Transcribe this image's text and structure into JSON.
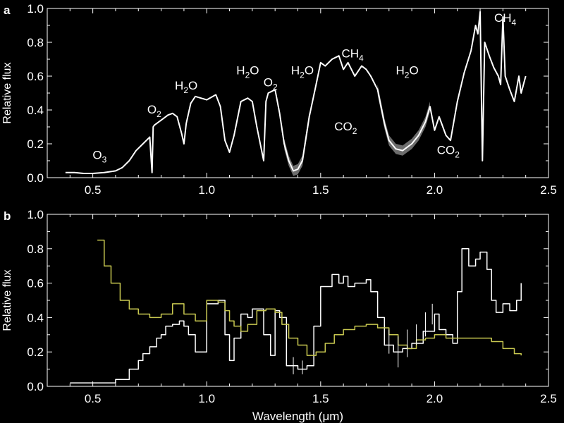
{
  "colors": {
    "background": "#000000",
    "axes": "#ffffff",
    "spectrum": "#ffffff",
    "uncertainty_band": "#888888",
    "model": "#c8c850"
  },
  "chart_data": [
    {
      "panel_label": "a",
      "type": "line",
      "xlabel": "",
      "ylabel": "Relative flux",
      "xlim": [
        0.3,
        2.5
      ],
      "ylim": [
        0.0,
        1.0
      ],
      "xticks": [
        "0.5",
        "1.0",
        "1.5",
        "2.0",
        "2.5"
      ],
      "yticks": [
        "0.0",
        "0.2",
        "0.4",
        "0.6",
        "0.8",
        "1.0"
      ],
      "annotations": [
        {
          "base": "O",
          "sub": "3",
          "x": 0.53,
          "y": 0.11
        },
        {
          "base": "O",
          "sub": "2",
          "x": 0.77,
          "y": 0.38
        },
        {
          "base": "H",
          "sub": "2",
          "tail": "O",
          "x": 0.91,
          "y": 0.52
        },
        {
          "base": "H",
          "sub": "2",
          "tail": "O",
          "x": 1.18,
          "y": 0.61
        },
        {
          "base": "O",
          "sub": "2",
          "x": 1.28,
          "y": 0.54
        },
        {
          "base": "H",
          "sub": "2",
          "tail": "O",
          "x": 1.42,
          "y": 0.61
        },
        {
          "base": "CH",
          "sub": "4",
          "x": 1.64,
          "y": 0.71
        },
        {
          "base": "CO",
          "sub": "2",
          "x": 1.61,
          "y": 0.28
        },
        {
          "base": "H",
          "sub": "2",
          "tail": "O",
          "x": 1.88,
          "y": 0.61
        },
        {
          "base": "CO",
          "sub": "2",
          "x": 2.06,
          "y": 0.14
        },
        {
          "base": "CH",
          "sub": "4",
          "x": 2.31,
          "y": 0.92
        }
      ],
      "series": [
        {
          "style": "spectrum",
          "x": [
            0.38,
            0.42,
            0.46,
            0.5,
            0.55,
            0.6,
            0.63,
            0.66,
            0.69,
            0.72,
            0.75,
            0.76,
            0.765,
            0.77,
            0.8,
            0.83,
            0.85,
            0.87,
            0.89,
            0.9,
            0.91,
            0.93,
            0.95,
            1.0,
            1.04,
            1.06,
            1.08,
            1.1,
            1.12,
            1.15,
            1.18,
            1.2,
            1.22,
            1.25,
            1.26,
            1.27,
            1.3,
            1.32,
            1.34,
            1.36,
            1.38,
            1.4,
            1.42,
            1.45,
            1.48,
            1.5,
            1.52,
            1.55,
            1.58,
            1.6,
            1.62,
            1.65,
            1.68,
            1.7,
            1.72,
            1.75,
            1.78,
            1.8,
            1.83,
            1.86,
            1.9,
            1.93,
            1.96,
            1.98,
            2.0,
            2.02,
            2.05,
            2.07,
            2.1,
            2.13,
            2.16,
            2.18,
            2.19,
            2.2,
            2.21,
            2.22,
            2.24,
            2.26,
            2.28,
            2.29,
            2.3,
            2.31,
            2.33,
            2.35,
            2.37,
            2.38,
            2.4
          ],
          "y": [
            0.03,
            0.03,
            0.025,
            0.025,
            0.03,
            0.04,
            0.06,
            0.1,
            0.16,
            0.2,
            0.24,
            0.03,
            0.3,
            0.31,
            0.34,
            0.37,
            0.38,
            0.36,
            0.26,
            0.2,
            0.32,
            0.44,
            0.48,
            0.46,
            0.49,
            0.42,
            0.22,
            0.15,
            0.25,
            0.45,
            0.47,
            0.45,
            0.3,
            0.1,
            0.45,
            0.5,
            0.52,
            0.38,
            0.2,
            0.1,
            0.04,
            0.05,
            0.1,
            0.36,
            0.55,
            0.68,
            0.66,
            0.7,
            0.72,
            0.64,
            0.68,
            0.6,
            0.66,
            0.64,
            0.6,
            0.52,
            0.32,
            0.22,
            0.17,
            0.16,
            0.2,
            0.25,
            0.33,
            0.42,
            0.28,
            0.36,
            0.25,
            0.22,
            0.45,
            0.62,
            0.75,
            0.9,
            0.85,
            0.98,
            0.1,
            0.8,
            0.72,
            0.65,
            0.6,
            0.55,
            0.95,
            0.6,
            0.52,
            0.45,
            0.6,
            0.5,
            0.6
          ]
        }
      ],
      "uncertainty": [
        {
          "x_from": 1.34,
          "x_to": 1.47,
          "half_width": 0.03
        },
        {
          "x_from": 1.75,
          "x_to": 1.98,
          "half_width": 0.03
        }
      ]
    },
    {
      "panel_label": "b",
      "type": "line",
      "xlabel": "Wavelength (μm)",
      "ylabel": "Relative flux",
      "xlim": [
        0.3,
        2.5
      ],
      "ylim": [
        0.0,
        1.0
      ],
      "xticks": [
        "0.5",
        "1.0",
        "1.5",
        "2.0",
        "2.5"
      ],
      "yticks": [
        "0.0",
        "0.2",
        "0.4",
        "0.6",
        "0.8",
        "1.0"
      ],
      "series": [
        {
          "style": "step-white",
          "x": [
            0.4,
            0.5,
            0.6,
            0.66,
            0.7,
            0.72,
            0.75,
            0.78,
            0.8,
            0.82,
            0.85,
            0.88,
            0.9,
            0.92,
            0.95,
            1.0,
            1.05,
            1.08,
            1.1,
            1.12,
            1.15,
            1.18,
            1.2,
            1.25,
            1.28,
            1.3,
            1.32,
            1.35,
            1.4,
            1.44,
            1.47,
            1.5,
            1.55,
            1.58,
            1.6,
            1.62,
            1.65,
            1.7,
            1.72,
            1.75,
            1.78,
            1.82,
            1.86,
            1.9,
            1.95,
            2.0,
            2.02,
            2.05,
            2.08,
            2.1,
            2.12,
            2.15,
            2.18,
            2.2,
            2.23,
            2.25,
            2.27,
            2.3,
            2.33,
            2.36,
            2.38
          ],
          "y": [
            0.02,
            0.02,
            0.04,
            0.1,
            0.15,
            0.19,
            0.23,
            0.28,
            0.3,
            0.35,
            0.36,
            0.38,
            0.35,
            0.3,
            0.2,
            0.48,
            0.5,
            0.3,
            0.15,
            0.28,
            0.42,
            0.4,
            0.45,
            0.3,
            0.18,
            0.44,
            0.4,
            0.12,
            0.1,
            0.12,
            0.35,
            0.58,
            0.65,
            0.6,
            0.64,
            0.58,
            0.6,
            0.62,
            0.55,
            0.4,
            0.24,
            0.2,
            0.22,
            0.25,
            0.32,
            0.42,
            0.33,
            0.3,
            0.25,
            0.55,
            0.8,
            0.7,
            0.74,
            0.78,
            0.68,
            0.5,
            0.43,
            0.48,
            0.44,
            0.5,
            0.6
          ]
        },
        {
          "style": "model-yellow",
          "x": [
            0.52,
            0.55,
            0.58,
            0.62,
            0.66,
            0.7,
            0.75,
            0.8,
            0.85,
            0.9,
            0.95,
            1.0,
            1.05,
            1.08,
            1.1,
            1.12,
            1.15,
            1.18,
            1.22,
            1.26,
            1.3,
            1.33,
            1.36,
            1.4,
            1.44,
            1.48,
            1.52,
            1.56,
            1.6,
            1.65,
            1.7,
            1.75,
            1.8,
            1.84,
            1.88,
            1.92,
            1.96,
            2.0,
            2.05,
            2.1,
            2.15,
            2.2,
            2.25,
            2.3,
            2.35,
            2.38
          ],
          "y": [
            0.85,
            0.7,
            0.6,
            0.5,
            0.45,
            0.42,
            0.4,
            0.42,
            0.48,
            0.42,
            0.38,
            0.5,
            0.49,
            0.44,
            0.38,
            0.35,
            0.32,
            0.36,
            0.44,
            0.45,
            0.43,
            0.36,
            0.28,
            0.24,
            0.18,
            0.2,
            0.25,
            0.3,
            0.33,
            0.35,
            0.36,
            0.34,
            0.3,
            0.24,
            0.22,
            0.27,
            0.28,
            0.3,
            0.28,
            0.28,
            0.28,
            0.28,
            0.26,
            0.22,
            0.19,
            0.18
          ]
        }
      ],
      "error_bars": [
        {
          "x": 1.38,
          "y": 0.12,
          "err": 0.05
        },
        {
          "x": 1.42,
          "y": 0.11,
          "err": 0.04
        },
        {
          "x": 1.8,
          "y": 0.26,
          "err": 0.07
        },
        {
          "x": 1.84,
          "y": 0.2,
          "err": 0.09
        },
        {
          "x": 1.88,
          "y": 0.25,
          "err": 0.08
        },
        {
          "x": 1.92,
          "y": 0.3,
          "err": 0.06
        },
        {
          "x": 1.96,
          "y": 0.36,
          "err": 0.07
        },
        {
          "x": 1.99,
          "y": 0.42,
          "err": 0.06
        }
      ]
    }
  ]
}
